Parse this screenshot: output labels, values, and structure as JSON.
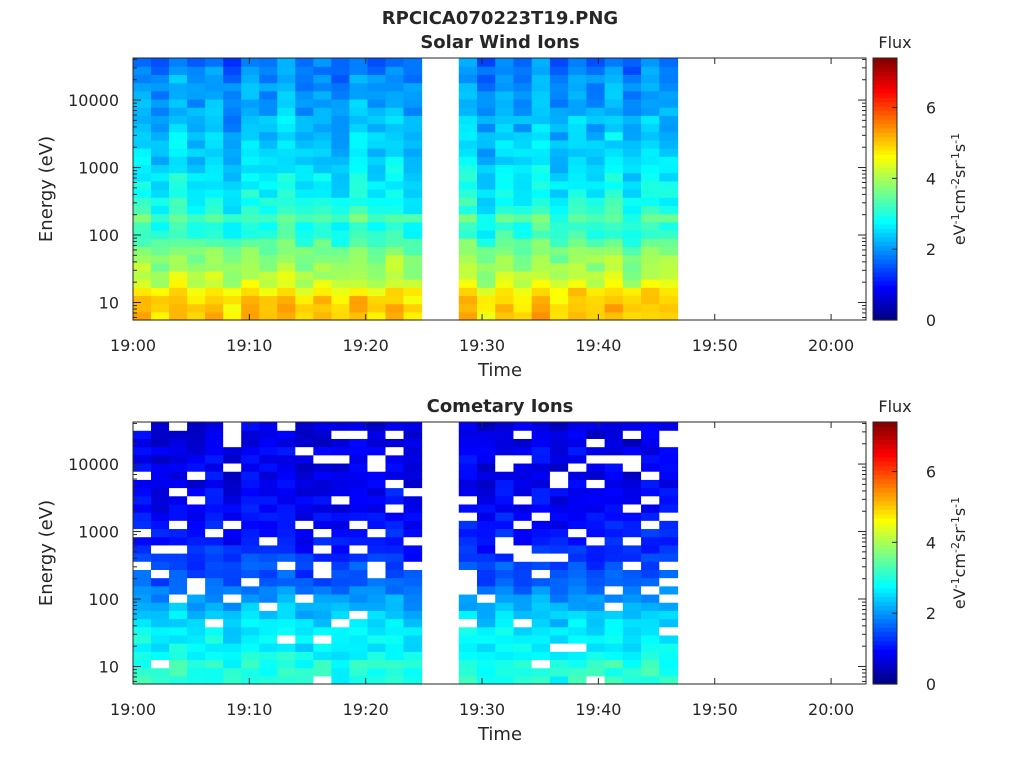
{
  "figure_title": "RPCICA070223T19.PNG",
  "colors": {
    "axis": "#262626",
    "colormap": [
      "#00007f",
      "#0000ff",
      "#007fff",
      "#00ffff",
      "#7fff7f",
      "#ffff00",
      "#ff7f00",
      "#ff0000",
      "#7f0000"
    ]
  },
  "chart_data": [
    {
      "type": "heatmap",
      "title": "Solar Wind Ions",
      "xlabel": "Time",
      "ylabel": "Energy (eV)",
      "x_ticks": [
        "19:00",
        "19:10",
        "19:20",
        "19:30",
        "19:40",
        "19:50",
        "20:00"
      ],
      "x_tick_values": [
        0,
        10,
        20,
        30,
        40,
        50,
        60
      ],
      "xlim": [
        0,
        63
      ],
      "y_scale": "log",
      "y_ticks": [
        "10",
        "100",
        "1000",
        "10000"
      ],
      "y_tick_values": [
        10,
        100,
        1000,
        10000
      ],
      "ylim": [
        5.5,
        42000
      ],
      "colorbar": {
        "title": "Flux",
        "label": "eV-1cm-2sr-1s-1",
        "ticks": [
          "0",
          "2",
          "4",
          "6"
        ],
        "tick_values": [
          0,
          2,
          4,
          6
        ],
        "range": [
          0,
          7.4
        ]
      },
      "data_segments_minutes": [
        [
          0,
          24.8
        ],
        [
          28.0,
          46.8
        ]
      ],
      "columns": 28,
      "col_width_minutes": 1.6,
      "rows": 32,
      "row_flux_profile": [
        4.9,
        4.9,
        4.9,
        4.7,
        4.2,
        4.0,
        3.9,
        3.8,
        3.6,
        3.3,
        3.0,
        3.0,
        3.3,
        2.9,
        2.8,
        2.7,
        2.6,
        2.6,
        2.5,
        2.4,
        2.4,
        2.3,
        2.3,
        2.2,
        2.2,
        2.1,
        2.1,
        2.0,
        2.0,
        1.9,
        1.8,
        1.7
      ],
      "column_modulation": [
        0.2,
        -0.1,
        0.3,
        0.0,
        0.2,
        -0.2,
        0.2,
        0.0,
        0.3,
        -0.1,
        0.1,
        -0.2,
        0.2,
        0.0,
        0.2,
        -0.1,
        0.3,
        -0.2,
        0.2,
        0.0,
        0.3,
        -0.1,
        0.2,
        0.0,
        0.3,
        -0.1,
        0.2,
        0.1
      ],
      "missing_fraction": 0.0
    },
    {
      "type": "heatmap",
      "title": "Cometary Ions",
      "xlabel": "Time",
      "ylabel": "Energy (eV)",
      "x_ticks": [
        "19:00",
        "19:10",
        "19:20",
        "19:30",
        "19:40",
        "19:50",
        "20:00"
      ],
      "x_tick_values": [
        0,
        10,
        20,
        30,
        40,
        50,
        60
      ],
      "xlim": [
        0,
        63
      ],
      "y_scale": "log",
      "y_ticks": [
        "10",
        "100",
        "1000",
        "10000"
      ],
      "y_tick_values": [
        10,
        100,
        1000,
        10000
      ],
      "ylim": [
        5.5,
        42000
      ],
      "colorbar": {
        "title": "Flux",
        "label": "eV-1cm-2sr-1s-1",
        "ticks": [
          "0",
          "2",
          "4",
          "6"
        ],
        "tick_values": [
          0,
          2,
          4,
          6
        ],
        "range": [
          0,
          7.4
        ]
      },
      "data_segments_minutes": [
        [
          0,
          24.8
        ],
        [
          28.0,
          46.8
        ]
      ],
      "columns": 28,
      "col_width_minutes": 1.6,
      "rows": 32,
      "row_flux_profile": [
        3.0,
        3.0,
        3.0,
        2.8,
        2.7,
        2.7,
        2.6,
        2.5,
        2.4,
        2.2,
        2.0,
        1.8,
        1.6,
        1.5,
        1.4,
        1.3,
        1.2,
        1.1,
        1.1,
        1.0,
        1.0,
        0.9,
        0.9,
        0.9,
        0.8,
        0.8,
        0.8,
        0.8,
        0.8,
        0.7,
        0.7,
        0.7
      ],
      "column_modulation": [
        0.1,
        -0.1,
        0.1,
        0.0,
        0.1,
        -0.1,
        0.1,
        0.0,
        0.1,
        -0.1,
        0.0,
        -0.1,
        0.1,
        0.0,
        0.1,
        -0.1,
        0.1,
        -0.1,
        0.1,
        0.0,
        0.1,
        -0.1,
        0.1,
        0.0,
        0.1,
        -0.1,
        0.1,
        0.0
      ],
      "missing_fraction": 0.12
    }
  ]
}
